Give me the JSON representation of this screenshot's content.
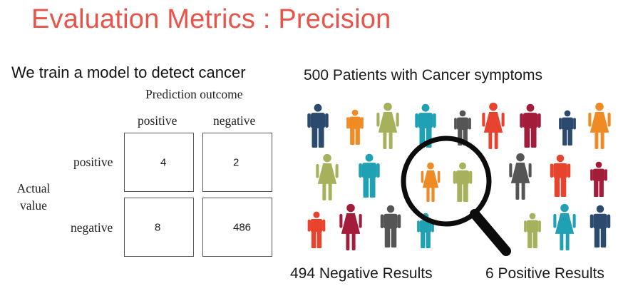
{
  "slide": {
    "title": "Evaluation Metrics : Precision",
    "title_color": "#e9534a"
  },
  "left_panel": {
    "heading": "We train a model to detect cancer",
    "matrix": {
      "top_label": "Prediction outcome",
      "col_labels": [
        "positive",
        "negative"
      ],
      "row_labels": [
        "positive",
        "negative"
      ],
      "side_label_lines": [
        "Actual",
        "value"
      ],
      "cells": [
        [
          "4",
          "2"
        ],
        [
          "8",
          "486"
        ]
      ]
    }
  },
  "right_panel": {
    "heading": "500 Patients with Cancer symptoms",
    "negative_results": "494 Negative Results",
    "positive_results": "6 Positive Results",
    "illustration": {
      "figure_icon": "person-figure-icon",
      "magnifier_icon": "magnifying-glass-icon",
      "colors": {
        "navy": "#2c4a6e",
        "orange": "#f08a24",
        "olive": "#a7b15b",
        "teal": "#1fa0b3",
        "gray": "#555555",
        "red": "#e8432e",
        "maroon": "#a31c3a"
      }
    }
  }
}
